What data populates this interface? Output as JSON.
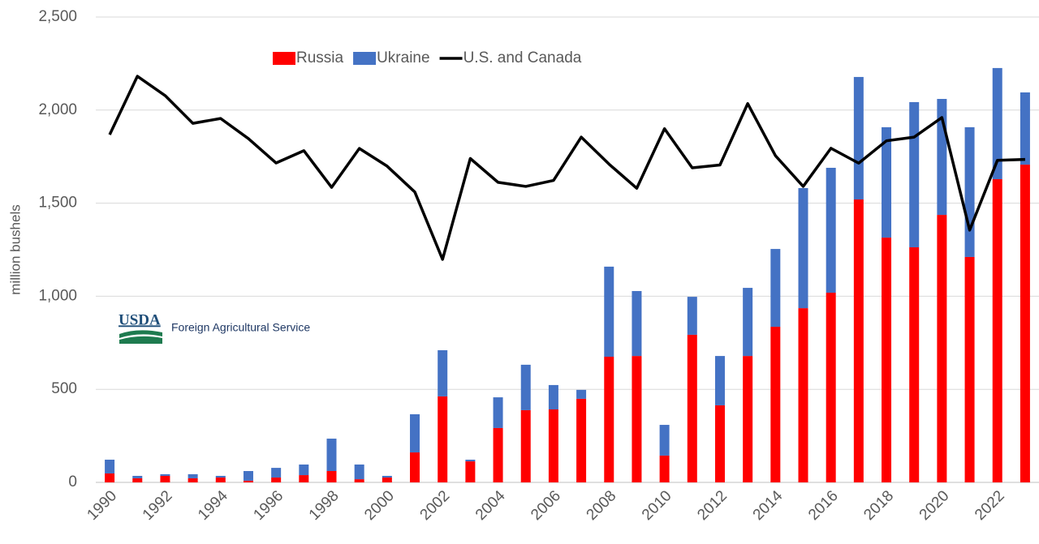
{
  "chart_data": {
    "type": "stacked-bar-line",
    "y_label": "million bushels",
    "categories": [
      "1990",
      null,
      "1992",
      null,
      "1994",
      null,
      "1996",
      null,
      "1998",
      null,
      "2000",
      null,
      "2002",
      null,
      "2004",
      null,
      "2006",
      null,
      "2008",
      null,
      "2010",
      null,
      "2012",
      null,
      "2014",
      null,
      "2016",
      null,
      "2018",
      null,
      "2020",
      null,
      "2022",
      null
    ],
    "series": [
      {
        "name": "Russia",
        "color": "#ff0000",
        "kind": "bar",
        "values": [
          48,
          22,
          35,
          22,
          26,
          9,
          26,
          39,
          61,
          17,
          26,
          161,
          462,
          113,
          292,
          388,
          392,
          449,
          675,
          679,
          144,
          793,
          414,
          679,
          836,
          936,
          1019,
          1520,
          1315,
          1263,
          1437,
          1211,
          1629,
          1707
        ]
      },
      {
        "name": "Ukraine",
        "color": "#4472c4",
        "kind": "bar",
        "values": [
          74,
          13,
          9,
          22,
          9,
          52,
          52,
          57,
          174,
          79,
          9,
          205,
          248,
          9,
          165,
          244,
          131,
          48,
          484,
          349,
          165,
          204,
          265,
          366,
          418,
          645,
          671,
          658,
          593,
          780,
          623,
          697,
          597,
          388
        ]
      },
      {
        "name": "U.S. and Canada",
        "color": "#000000",
        "kind": "line",
        "values": [
          1868,
          2182,
          2078,
          1929,
          1955,
          1847,
          1716,
          1782,
          1585,
          1794,
          1699,
          1560,
          1198,
          1740,
          1612,
          1590,
          1622,
          1855,
          1710,
          1580,
          1900,
          1690,
          1705,
          2035,
          1755,
          1590,
          1795,
          1715,
          1835,
          1855,
          1960,
          1355,
          1730,
          1735
        ]
      }
    ],
    "ylim": [
      0,
      2500
    ],
    "yticks": [
      0,
      500,
      {
        "value": 1000,
        "label": "1,000"
      },
      {
        "value": 1500,
        "label": "1,500"
      },
      {
        "value": 2000,
        "label": "2,000"
      },
      {
        "value": 2500,
        "label": "2,500"
      }
    ],
    "grid": true,
    "legend": "top",
    "logo": {
      "mark": "USDA",
      "text": "Foreign Agricultural Service"
    }
  }
}
